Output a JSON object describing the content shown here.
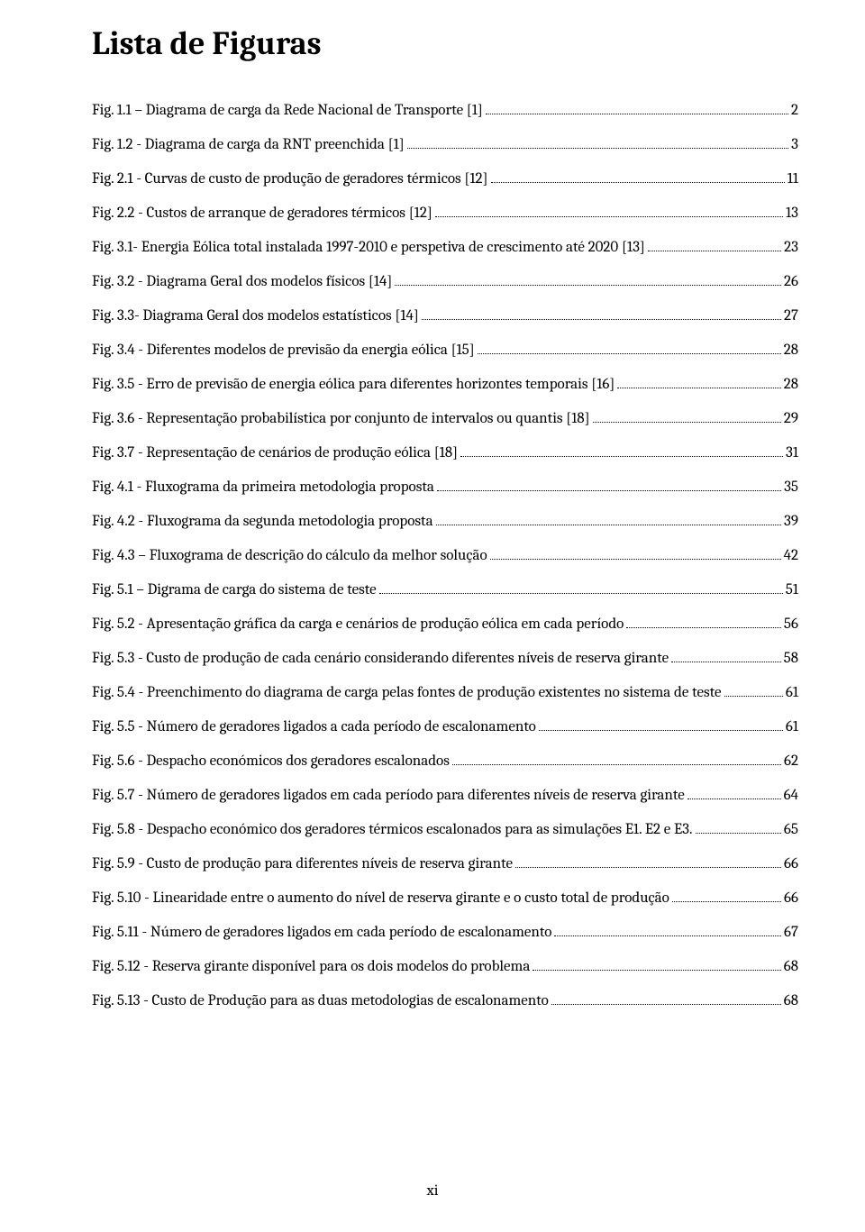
{
  "title": "Lista de Figuras",
  "page_number": "xi",
  "entries": [
    {
      "label": "Fig. 1.1 – Diagrama de carga da Rede Nacional de Transporte [1]",
      "page": "2"
    },
    {
      "label": "Fig. 1.2 - Diagrama de carga da RNT preenchida [1]",
      "page": "3"
    },
    {
      "label": "Fig. 2.1 - Curvas de custo de produção de geradores térmicos [12]",
      "page": "11"
    },
    {
      "label": "Fig. 2.2 - Custos de arranque de geradores térmicos [12]",
      "page": "13"
    },
    {
      "label": "Fig. 3.1- Energia Eólica total instalada 1997-2010 e perspetiva de crescimento até 2020 [13]",
      "page": "23"
    },
    {
      "label": "Fig. 3.2 - Diagrama Geral dos modelos físicos [14]",
      "page": "26"
    },
    {
      "label": "Fig. 3.3- Diagrama Geral dos modelos estatísticos [14]",
      "page": "27"
    },
    {
      "label": "Fig. 3.4 - Diferentes modelos de previsão da energia eólica [15]",
      "page": "28"
    },
    {
      "label": "Fig. 3.5 - Erro de previsão de energia eólica para diferentes horizontes temporais [16]",
      "page": "28"
    },
    {
      "label": "Fig. 3.6 - Representação probabilística por conjunto de intervalos ou quantis [18]",
      "page": "29"
    },
    {
      "label": "Fig. 3.7 - Representação de cenários de produção eólica [18]",
      "page": "31"
    },
    {
      "label": "Fig. 4.1 - Fluxograma da primeira metodologia proposta",
      "page": "35"
    },
    {
      "label": "Fig. 4.2  - Fluxograma da segunda  metodologia proposta",
      "page": "39"
    },
    {
      "label": "Fig. 4.3 – Fluxograma de descrição do cálculo da melhor solução",
      "page": "42"
    },
    {
      "label": "Fig. 5.1 – Digrama de carga do sistema de teste",
      "page": "51"
    },
    {
      "label": "Fig. 5.2 - Apresentação gráfica da carga e cenários de produção eólica em cada período",
      "page": "56"
    },
    {
      "label": "Fig. 5.3 - Custo de produção de cada cenário considerando diferentes níveis de reserva girante",
      "page": "58"
    },
    {
      "label": "Fig. 5.4 - Preenchimento do diagrama de carga pelas fontes de produção existentes no sistema de teste",
      "page": "61"
    },
    {
      "label": "Fig. 5.5 - Número de geradores ligados a cada período de escalonamento",
      "page": "61"
    },
    {
      "label": "Fig. 5.6 - Despacho económicos dos geradores escalonados",
      "page": "62"
    },
    {
      "label": "Fig. 5.7 - Número de geradores ligados em cada período para  diferentes níveis de reserva girante",
      "page": "64"
    },
    {
      "label": "Fig. 5.8 - Despacho económico dos geradores térmicos escalonados para as simulações E1. E2 e E3.",
      "page": "65"
    },
    {
      "label": "Fig. 5.9 - Custo de produção para diferentes níveis de reserva girante",
      "page": "66"
    },
    {
      "label": "Fig. 5.10 - Linearidade entre o aumento do nível de reserva girante e o custo total de produção",
      "page": "66"
    },
    {
      "label": "Fig. 5.11 - Número de geradores ligados em cada período de escalonamento",
      "page": "67"
    },
    {
      "label": "Fig. 5.12 - Reserva girante disponível para os dois modelos do problema",
      "page": "68"
    },
    {
      "label": "Fig. 5.13 - Custo de Produção para as duas metodologias de escalonamento",
      "page": "68"
    }
  ]
}
